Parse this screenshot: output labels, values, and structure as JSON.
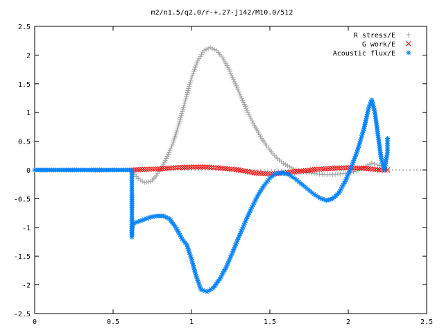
{
  "chart_data": {
    "type": "scatter",
    "title": "m2/n1.5/q2.0/r-+.27-j142/M10.0/512",
    "xlabel": "",
    "ylabel": "",
    "xlim": [
      0,
      2.5
    ],
    "ylim": [
      -2.5,
      2.5
    ],
    "x_ticks": [
      "0",
      "0.5",
      "1",
      "1.5",
      "2",
      "2.5"
    ],
    "y_ticks": [
      "2.5",
      "2",
      "1.5",
      "1",
      "0.5",
      "0",
      "-0.5",
      "-1",
      "-1.5",
      "-2",
      "-2.5"
    ],
    "grid": false,
    "legend_position": "top-right",
    "series": [
      {
        "name": "R stress/E",
        "marker": "+",
        "color": "#a0a0a0",
        "points": [
          [
            0.0,
            0
          ],
          [
            0.2,
            0
          ],
          [
            0.4,
            0
          ],
          [
            0.62,
            0
          ],
          [
            0.63,
            -0.05
          ],
          [
            0.66,
            -0.15
          ],
          [
            0.7,
            -0.22
          ],
          [
            0.74,
            -0.2
          ],
          [
            0.77,
            -0.12
          ],
          [
            0.8,
            0.0
          ],
          [
            0.84,
            0.2
          ],
          [
            0.88,
            0.45
          ],
          [
            0.92,
            0.8
          ],
          [
            0.96,
            1.2
          ],
          [
            1.0,
            1.6
          ],
          [
            1.04,
            1.9
          ],
          [
            1.08,
            2.08
          ],
          [
            1.12,
            2.13
          ],
          [
            1.16,
            2.08
          ],
          [
            1.2,
            1.95
          ],
          [
            1.24,
            1.75
          ],
          [
            1.28,
            1.5
          ],
          [
            1.32,
            1.25
          ],
          [
            1.36,
            1.0
          ],
          [
            1.4,
            0.78
          ],
          [
            1.44,
            0.58
          ],
          [
            1.48,
            0.42
          ],
          [
            1.52,
            0.28
          ],
          [
            1.56,
            0.17
          ],
          [
            1.6,
            0.09
          ],
          [
            1.65,
            0.02
          ],
          [
            1.7,
            -0.02
          ],
          [
            1.75,
            -0.05
          ],
          [
            1.8,
            -0.07
          ],
          [
            1.85,
            -0.08
          ],
          [
            1.9,
            -0.08
          ],
          [
            1.95,
            -0.07
          ],
          [
            2.0,
            -0.05
          ],
          [
            2.05,
            -0.02
          ],
          [
            2.1,
            0.05
          ],
          [
            2.15,
            0.12
          ],
          [
            2.2,
            0.08
          ],
          [
            2.24,
            0.02
          ]
        ]
      },
      {
        "name": "G work/E",
        "marker": "x",
        "color": "#ff0000",
        "points": [
          [
            0.62,
            0.0
          ],
          [
            0.7,
            0.01
          ],
          [
            0.8,
            0.02
          ],
          [
            0.9,
            0.04
          ],
          [
            1.0,
            0.05
          ],
          [
            1.1,
            0.05
          ],
          [
            1.2,
            0.03
          ],
          [
            1.3,
            0.0
          ],
          [
            1.4,
            -0.05
          ],
          [
            1.5,
            -0.07
          ],
          [
            1.6,
            -0.05
          ],
          [
            1.7,
            -0.02
          ],
          [
            1.8,
            0.01
          ],
          [
            1.9,
            0.03
          ],
          [
            2.0,
            0.04
          ],
          [
            2.1,
            0.03
          ],
          [
            2.2,
            0.0
          ],
          [
            2.25,
            0.0
          ]
        ]
      },
      {
        "name": "Acoustic flux/E",
        "marker": "*",
        "color": "#0080ff",
        "points": [
          [
            0.0,
            0
          ],
          [
            0.2,
            0
          ],
          [
            0.4,
            0
          ],
          [
            0.62,
            0
          ],
          [
            0.62,
            -1.17
          ],
          [
            0.62,
            -1.05
          ],
          [
            0.63,
            -0.93
          ],
          [
            0.66,
            -0.9
          ],
          [
            0.7,
            -0.86
          ],
          [
            0.74,
            -0.82
          ],
          [
            0.78,
            -0.8
          ],
          [
            0.82,
            -0.8
          ],
          [
            0.86,
            -0.85
          ],
          [
            0.9,
            -1.0
          ],
          [
            0.94,
            -1.2
          ],
          [
            0.97,
            -1.3
          ],
          [
            1.0,
            -1.55
          ],
          [
            1.03,
            -1.85
          ],
          [
            1.06,
            -2.08
          ],
          [
            1.1,
            -2.12
          ],
          [
            1.14,
            -2.05
          ],
          [
            1.18,
            -1.9
          ],
          [
            1.22,
            -1.7
          ],
          [
            1.26,
            -1.45
          ],
          [
            1.3,
            -1.18
          ],
          [
            1.34,
            -0.92
          ],
          [
            1.38,
            -0.68
          ],
          [
            1.42,
            -0.46
          ],
          [
            1.46,
            -0.28
          ],
          [
            1.5,
            -0.14
          ],
          [
            1.54,
            -0.06
          ],
          [
            1.58,
            -0.05
          ],
          [
            1.62,
            -0.08
          ],
          [
            1.66,
            -0.15
          ],
          [
            1.7,
            -0.24
          ],
          [
            1.74,
            -0.33
          ],
          [
            1.78,
            -0.42
          ],
          [
            1.82,
            -0.49
          ],
          [
            1.86,
            -0.53
          ],
          [
            1.9,
            -0.5
          ],
          [
            1.94,
            -0.4
          ],
          [
            1.98,
            -0.2
          ],
          [
            2.02,
            0.05
          ],
          [
            2.06,
            0.35
          ],
          [
            2.1,
            0.72
          ],
          [
            2.13,
            1.08
          ],
          [
            2.15,
            1.22
          ],
          [
            2.17,
            1.0
          ],
          [
            2.19,
            0.6
          ],
          [
            2.21,
            0.2
          ],
          [
            2.23,
            0.0
          ],
          [
            2.25,
            0.3
          ],
          [
            2.25,
            0.55
          ]
        ]
      }
    ]
  }
}
